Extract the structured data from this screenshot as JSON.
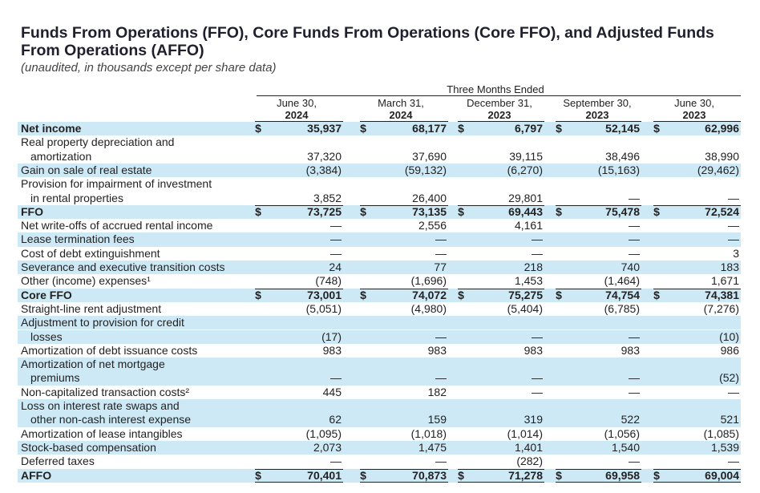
{
  "title": "Funds From Operations (FFO), Core Funds From Operations (Core FFO), and Adjusted Funds From Operations (AFFO)",
  "subtitle": "(unaudited, in thousands except per share data)",
  "span_header": "Three Months Ended",
  "columns": [
    {
      "date": "June 30,",
      "year": "2024"
    },
    {
      "date": "March 31,",
      "year": "2024"
    },
    {
      "date": "December 31,",
      "year": "2023"
    },
    {
      "date": "September 30,",
      "year": "2023"
    },
    {
      "date": "June 30,",
      "year": "2023"
    }
  ],
  "rows": [
    {
      "label": "Net income",
      "bold": true,
      "shade": true,
      "cur": true,
      "values": [
        "35,937",
        "68,177",
        "6,797",
        "52,145",
        "62,996"
      ]
    },
    {
      "label": "Real property depreciation and",
      "shade": false,
      "values": [
        "",
        "",
        "",
        "",
        ""
      ]
    },
    {
      "label": "amortization",
      "indent": true,
      "shade": false,
      "values": [
        "37,320",
        "37,690",
        "39,115",
        "38,496",
        "38,990"
      ]
    },
    {
      "label": "Gain on sale of real estate",
      "shade": true,
      "values": [
        "(3,384)",
        "(59,132)",
        "(6,270)",
        "(15,163)",
        "(29,462)"
      ]
    },
    {
      "label": "Provision for impairment of investment",
      "shade": false,
      "values": [
        "",
        "",
        "",
        "",
        ""
      ]
    },
    {
      "label": "in rental properties",
      "indent": true,
      "shade": false,
      "values": [
        "3,852",
        "26,400",
        "29,801",
        "—",
        "—"
      ]
    },
    {
      "label": "FFO",
      "bold": true,
      "shade": true,
      "cur": true,
      "values": [
        "73,725",
        "73,135",
        "69,443",
        "75,478",
        "72,524"
      ]
    },
    {
      "label": "Net write-offs of accrued rental income",
      "shade": false,
      "values": [
        "—",
        "2,556",
        "4,161",
        "—",
        "—"
      ]
    },
    {
      "label": "Lease termination fees",
      "shade": true,
      "values": [
        "—",
        "—",
        "—",
        "—",
        "—"
      ]
    },
    {
      "label": "Cost of debt extinguishment",
      "shade": false,
      "values": [
        "—",
        "—",
        "—",
        "—",
        "3"
      ]
    },
    {
      "label": "Severance and executive transition costs",
      "shade": true,
      "values": [
        "24",
        "77",
        "218",
        "740",
        "183"
      ]
    },
    {
      "label": "Other (income) expenses¹",
      "shade": false,
      "values": [
        "(748)",
        "(1,696)",
        "1,453",
        "(1,464)",
        "1,671"
      ]
    },
    {
      "label": "Core FFO",
      "bold": true,
      "shade": true,
      "cur": true,
      "values": [
        "73,001",
        "74,072",
        "75,275",
        "74,754",
        "74,381"
      ]
    },
    {
      "label": "Straight-line rent adjustment",
      "shade": false,
      "values": [
        "(5,051)",
        "(4,980)",
        "(5,404)",
        "(6,785)",
        "(7,276)"
      ]
    },
    {
      "label": "Adjustment to provision for credit",
      "shade": true,
      "values": [
        "",
        "",
        "",
        "",
        ""
      ]
    },
    {
      "label": "losses",
      "indent": true,
      "shade": true,
      "values": [
        "(17)",
        "—",
        "—",
        "—",
        "(10)"
      ]
    },
    {
      "label": "Amortization of debt issuance costs",
      "shade": false,
      "values": [
        "983",
        "983",
        "983",
        "983",
        "986"
      ]
    },
    {
      "label": "Amortization of net mortgage",
      "shade": true,
      "values": [
        "",
        "",
        "",
        "",
        ""
      ]
    },
    {
      "label": "premiums",
      "indent": true,
      "shade": true,
      "values": [
        "—",
        "—",
        "—",
        "—",
        "(52)"
      ]
    },
    {
      "label": "Non-capitalized transaction costs²",
      "shade": false,
      "values": [
        "445",
        "182",
        "—",
        "—",
        "—"
      ]
    },
    {
      "label": "Loss on interest rate swaps and",
      "shade": true,
      "values": [
        "",
        "",
        "",
        "",
        ""
      ]
    },
    {
      "label": "other non-cash interest expense",
      "indent": true,
      "shade": true,
      "values": [
        "62",
        "159",
        "319",
        "522",
        "521"
      ]
    },
    {
      "label": "Amortization of lease intangibles",
      "shade": false,
      "values": [
        "(1,095)",
        "(1,018)",
        "(1,014)",
        "(1,056)",
        "(1,085)"
      ]
    },
    {
      "label": "Stock-based compensation",
      "shade": true,
      "values": [
        "2,073",
        "1,475",
        "1,401",
        "1,540",
        "1,539"
      ]
    },
    {
      "label": "Deferred taxes",
      "shade": false,
      "values": [
        "—",
        "—",
        "(282)",
        "—",
        "—"
      ]
    },
    {
      "label": "AFFO",
      "bold": true,
      "shade": true,
      "cur": true,
      "values": [
        "70,401",
        "70,873",
        "71,278",
        "69,958",
        "69,004"
      ]
    }
  ],
  "currency_symbol": "$",
  "colors": {
    "shade": "#cde9f6",
    "text": "#222222",
    "title": "#1f1f2e"
  }
}
